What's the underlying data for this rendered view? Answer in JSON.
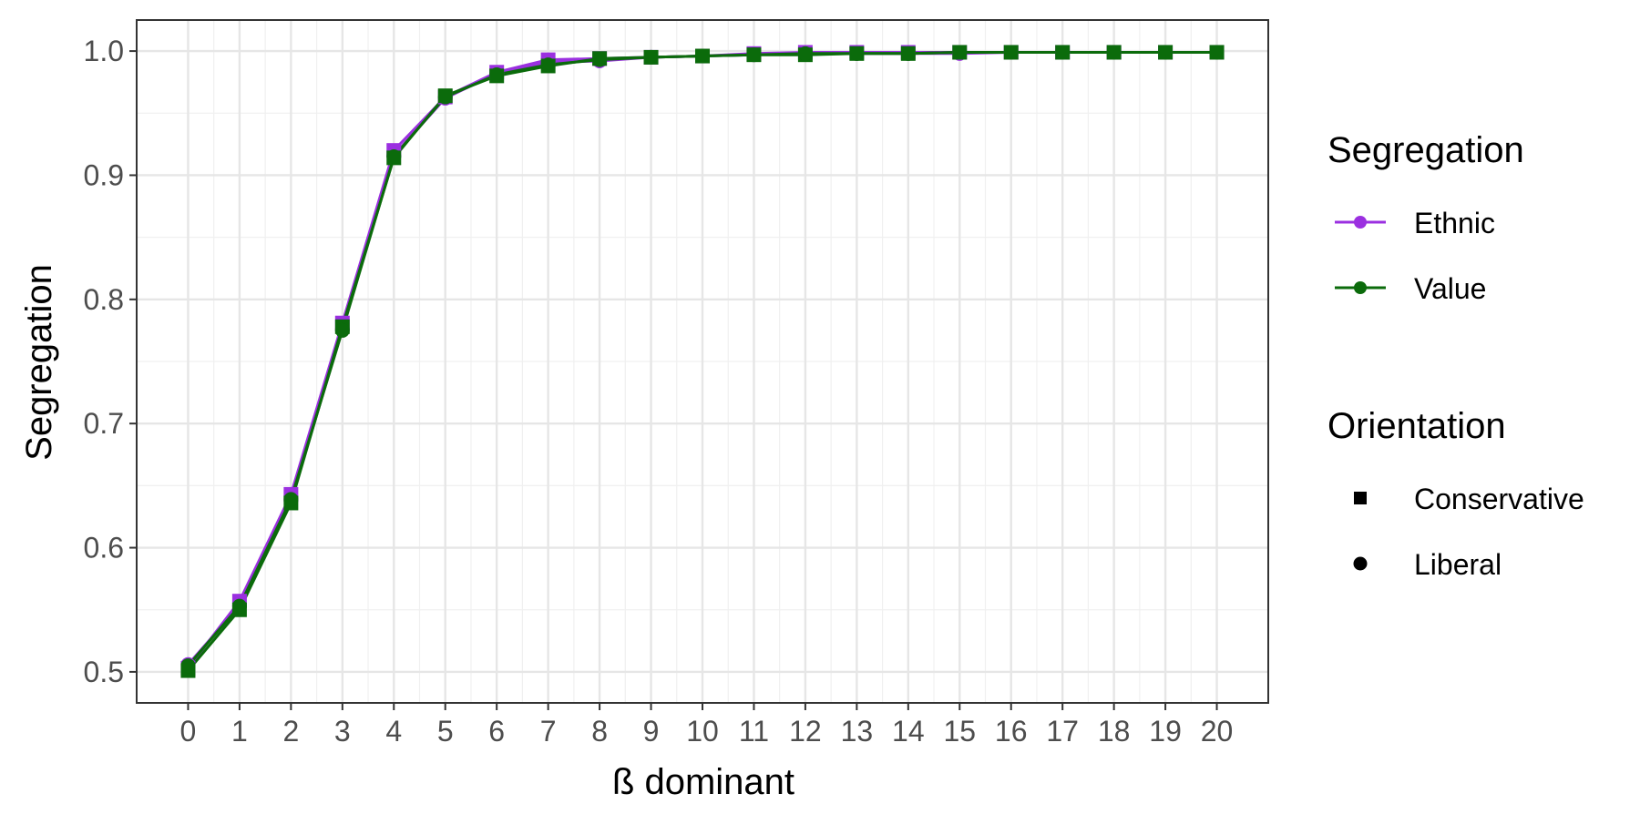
{
  "chart_data": {
    "type": "line",
    "title": "",
    "xlabel": "ß dominant",
    "ylabel": "Segregation",
    "xlim": [
      -1,
      21
    ],
    "ylim": [
      0.475,
      1.025
    ],
    "x_ticks": [
      0,
      1,
      2,
      3,
      4,
      5,
      6,
      7,
      8,
      9,
      10,
      11,
      12,
      13,
      14,
      15,
      16,
      17,
      18,
      19,
      20
    ],
    "x_tick_labels": [
      "0",
      "1",
      "2",
      "3",
      "4",
      "5",
      "6",
      "7",
      "8",
      "9",
      "10",
      "11",
      "12",
      "13",
      "14",
      "15",
      "16",
      "17",
      "18",
      "19",
      "20"
    ],
    "y_ticks": [
      0.5,
      0.6,
      0.7,
      0.8,
      0.9,
      1.0
    ],
    "y_tick_labels": [
      "0.5",
      "0.6",
      "0.7",
      "0.8",
      "0.9",
      "1.0"
    ],
    "grid": true,
    "legend_position": "right",
    "colors": {
      "Ethnic": "#9b30e0",
      "Value": "#0b6b0b"
    },
    "x": [
      0,
      1,
      2,
      3,
      4,
      5,
      6,
      7,
      8,
      9,
      10,
      11,
      12,
      13,
      14,
      15,
      16,
      17,
      18,
      19,
      20
    ],
    "series": [
      {
        "segregation": "Ethnic",
        "orientation": "Conservative",
        "marker": "square",
        "values": [
          0.503,
          0.557,
          0.643,
          0.781,
          0.92,
          0.963,
          0.983,
          0.993,
          0.994,
          0.995,
          0.996,
          0.998,
          0.999,
          0.999,
          0.999,
          0.999,
          0.999,
          0.999,
          0.999,
          0.999,
          0.999
        ]
      },
      {
        "segregation": "Ethnic",
        "orientation": "Liberal",
        "marker": "circle",
        "values": [
          0.506,
          0.553,
          0.638,
          0.776,
          0.916,
          0.962,
          0.982,
          0.991,
          0.992,
          0.995,
          0.996,
          0.997,
          0.998,
          0.998,
          0.998,
          0.998,
          0.999,
          0.999,
          0.999,
          0.999,
          0.999
        ]
      },
      {
        "segregation": "Value",
        "orientation": "Conservative",
        "marker": "square",
        "values": [
          0.501,
          0.55,
          0.636,
          0.778,
          0.914,
          0.964,
          0.98,
          0.988,
          0.994,
          0.995,
          0.996,
          0.997,
          0.997,
          0.998,
          0.998,
          0.999,
          0.999,
          0.999,
          0.999,
          0.999,
          0.999
        ]
      },
      {
        "segregation": "Value",
        "orientation": "Liberal",
        "marker": "circle",
        "values": [
          0.505,
          0.553,
          0.639,
          0.775,
          0.915,
          0.963,
          0.981,
          0.989,
          0.993,
          0.995,
          0.996,
          0.997,
          0.998,
          0.998,
          0.998,
          0.999,
          0.999,
          0.999,
          0.999,
          0.999,
          0.999
        ]
      }
    ],
    "legend": {
      "segregation": {
        "title": "Segregation",
        "items": [
          "Ethnic",
          "Value"
        ]
      },
      "orientation": {
        "title": "Orientation",
        "items": [
          "Conservative",
          "Liberal"
        ]
      }
    }
  }
}
